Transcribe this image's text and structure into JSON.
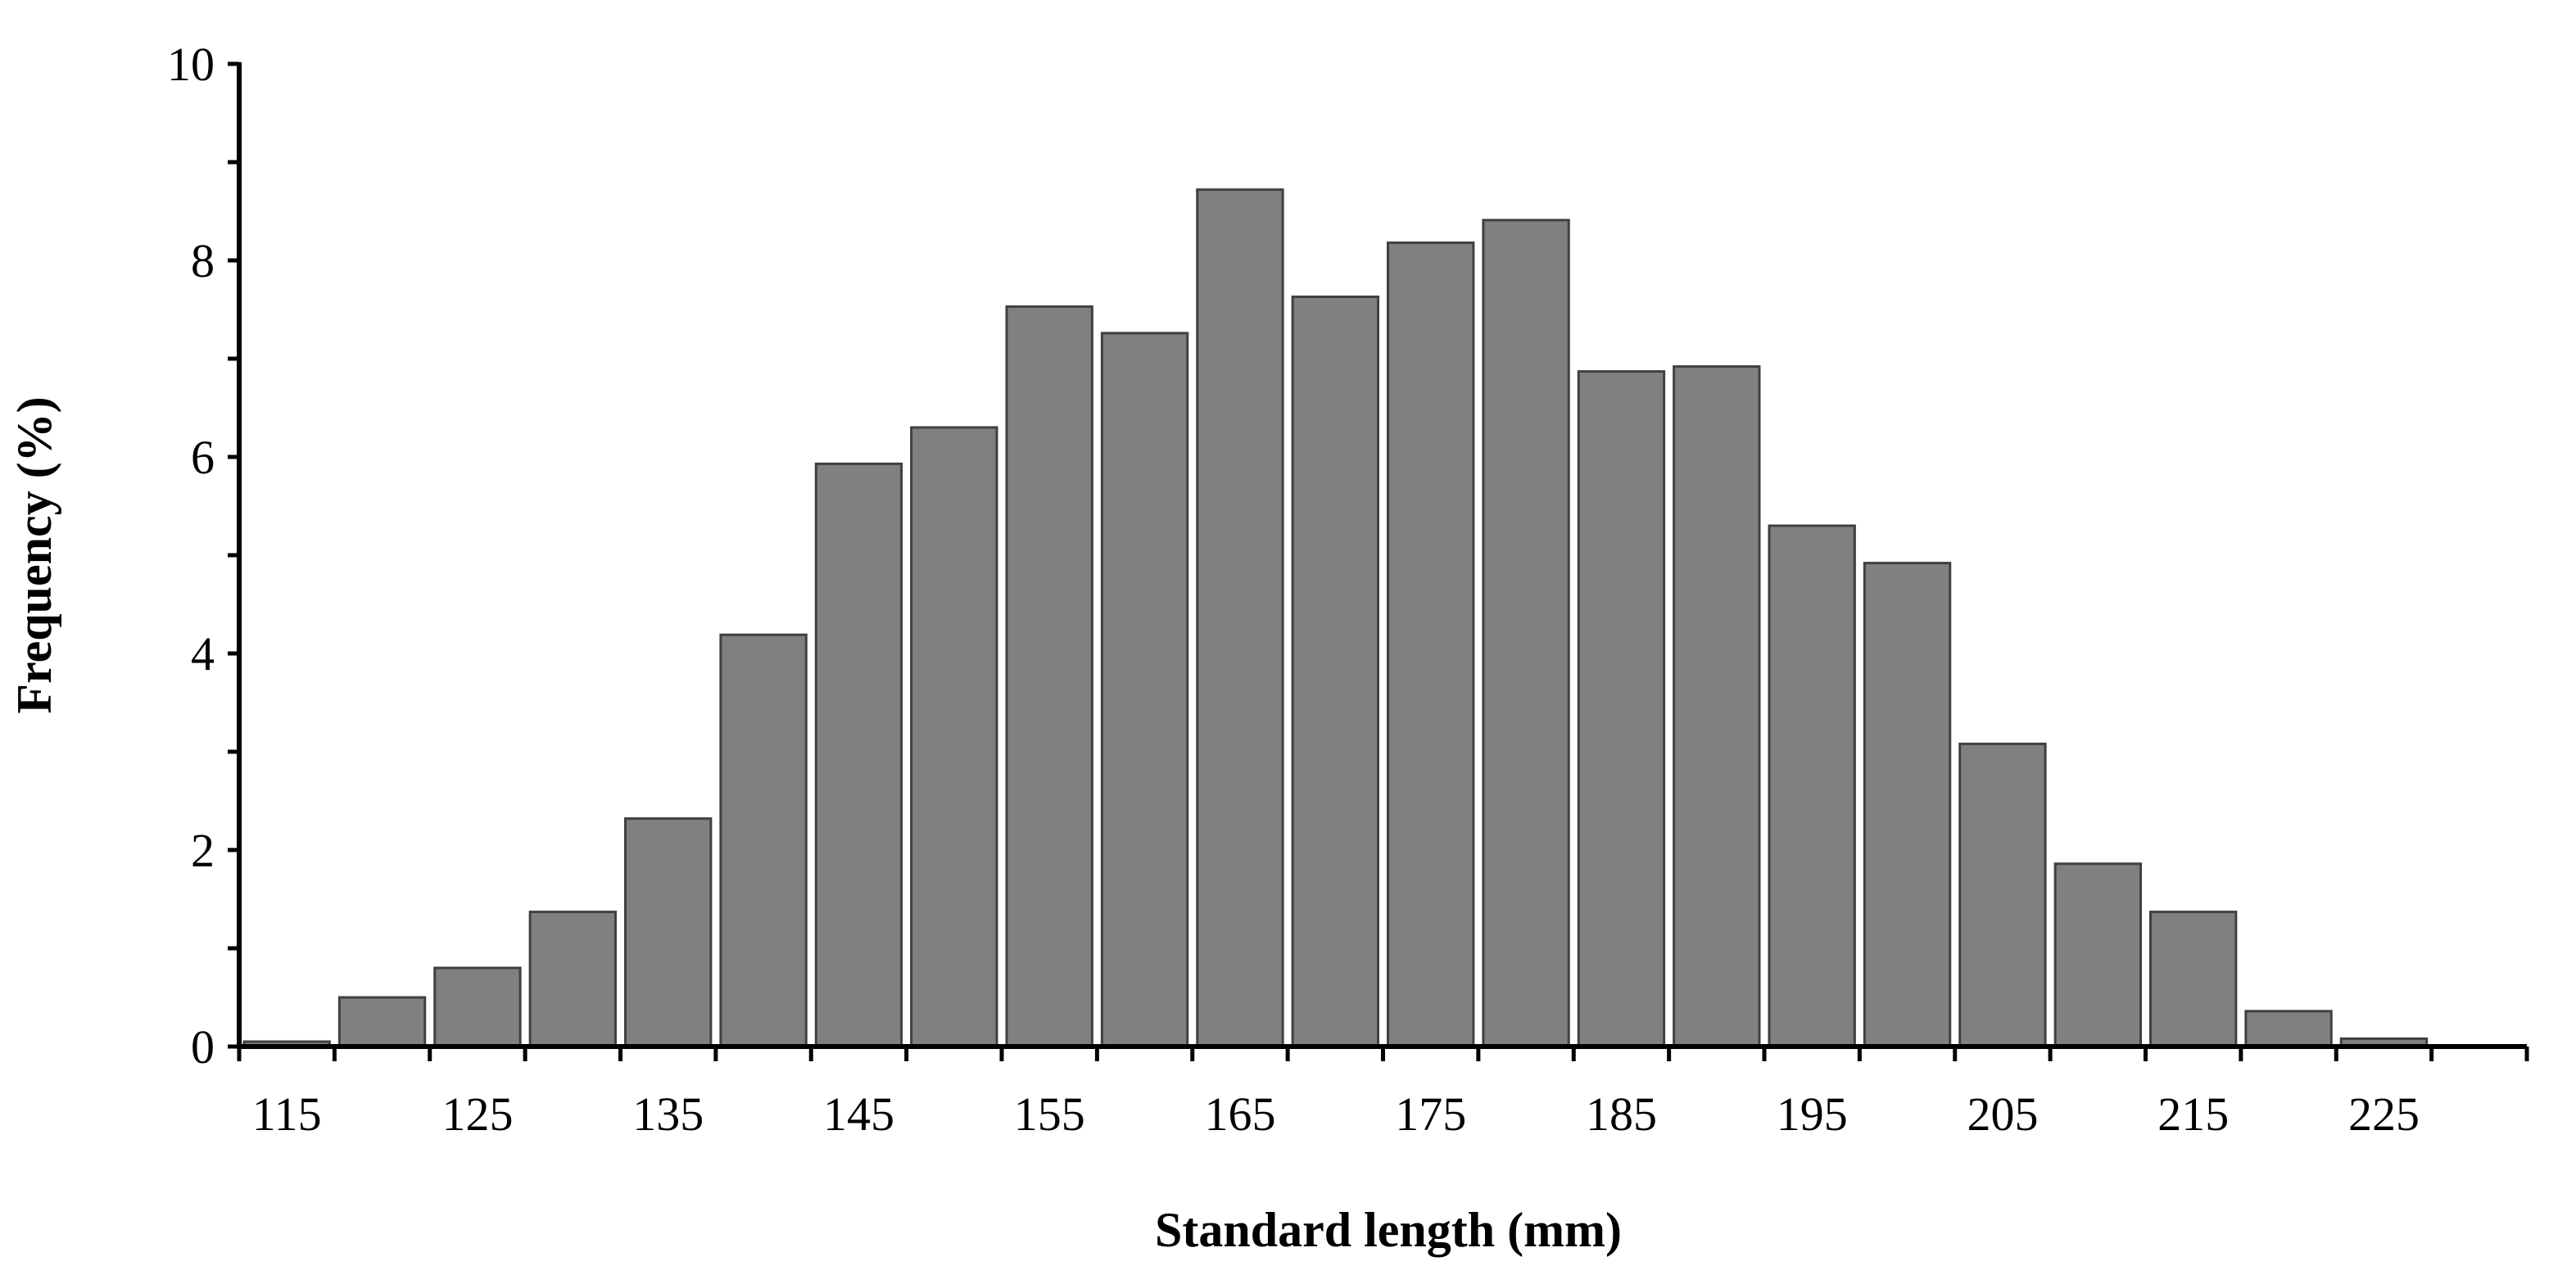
{
  "chart_data": {
    "type": "bar",
    "title": "",
    "xlabel": "Standard length (mm)",
    "ylabel": "Frequency (%)",
    "ylim": [
      0,
      10
    ],
    "xlim": [
      112.5,
      232.5
    ],
    "bin_width": 5,
    "grid": false,
    "legend": "none",
    "bar_color": "#808080",
    "y_ticks": [
      0,
      2,
      4,
      6,
      8,
      10
    ],
    "x_tick_labels": [
      "115",
      "125",
      "135",
      "145",
      "155",
      "165",
      "175",
      "185",
      "195",
      "205",
      "215",
      "225"
    ],
    "categories": [
      "115",
      "120",
      "125",
      "130",
      "135",
      "140",
      "145",
      "150",
      "155",
      "160",
      "165",
      "170",
      "175",
      "180",
      "185",
      "190",
      "195",
      "200",
      "205",
      "210",
      "215",
      "220",
      "225"
    ],
    "values": [
      0.05,
      0.5,
      0.8,
      1.37,
      2.32,
      4.19,
      5.93,
      6.3,
      7.53,
      7.26,
      8.72,
      7.63,
      8.18,
      8.41,
      6.87,
      6.92,
      5.3,
      4.92,
      3.08,
      1.86,
      1.37,
      0.36,
      0.08
    ]
  }
}
